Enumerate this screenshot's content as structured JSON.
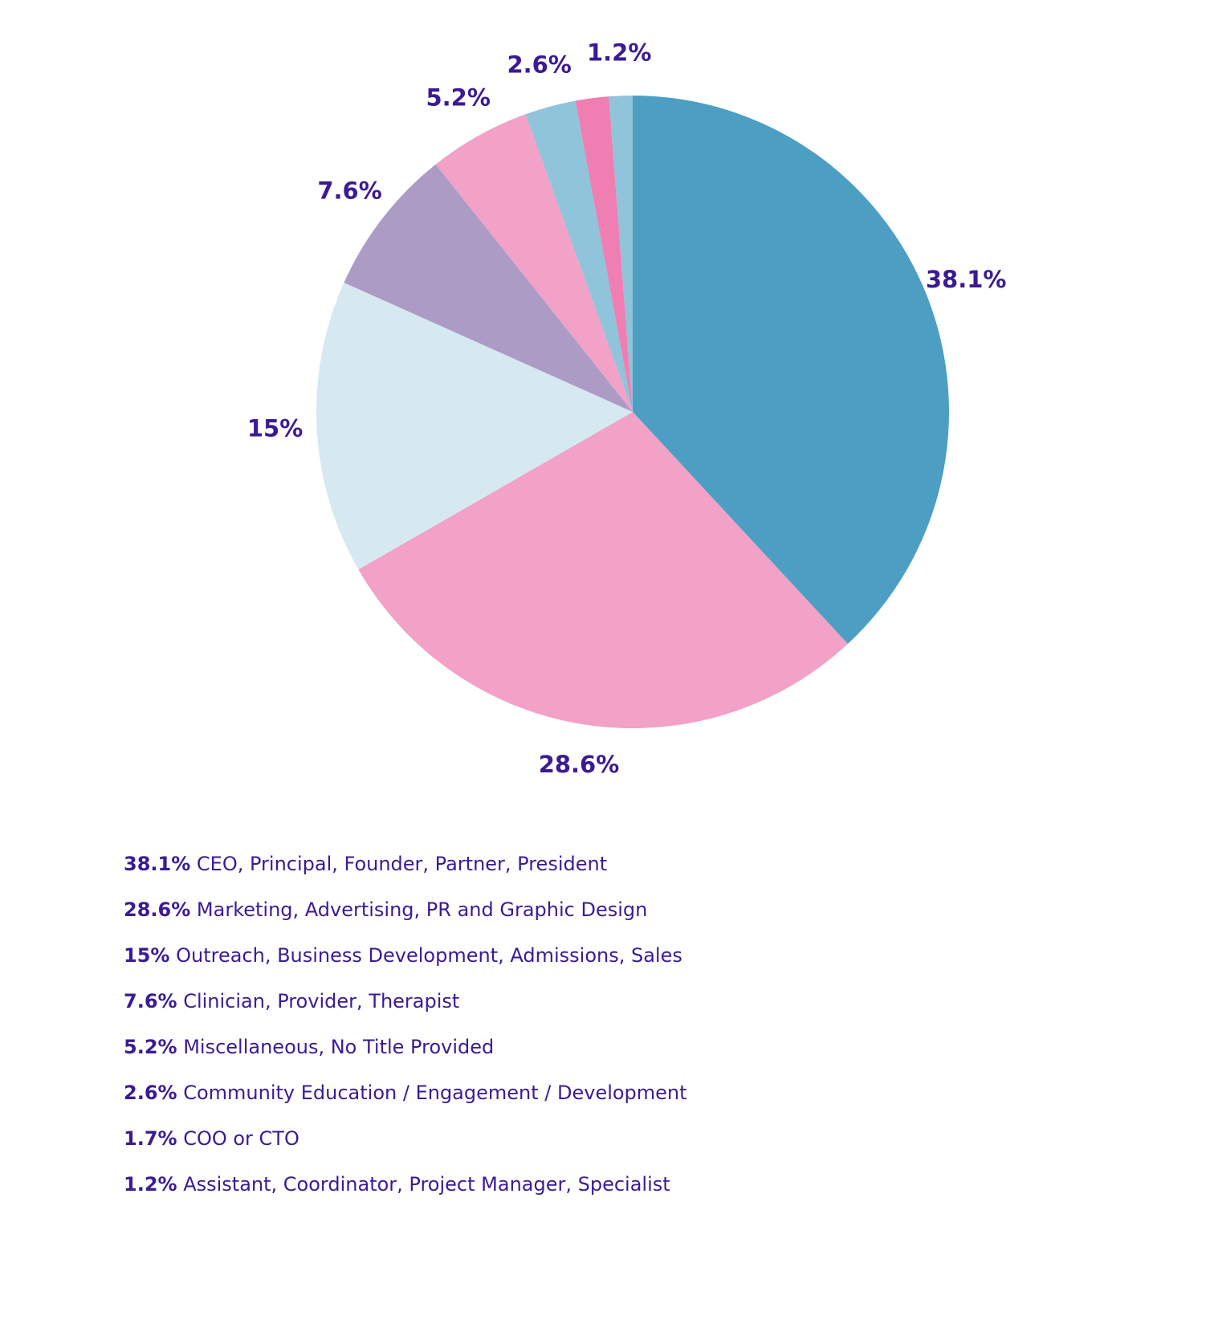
{
  "chart_data": {
    "type": "pie",
    "categories": [
      "CEO, Principal, Founder, Partner, President",
      "Marketing, Advertising, PR and Graphic Design",
      "Outreach, Business Development, Admissions, Sales",
      "Clinician, Provider, Therapist",
      "Miscellaneous, No Title Provided",
      "Community Education / Engagement / Development",
      "COO or CTO",
      "Assistant, Coordinator, Project Manager, Specialist"
    ],
    "values": [
      38.1,
      28.6,
      15,
      7.6,
      5.2,
      2.6,
      1.7,
      1.2
    ],
    "value_labels": [
      "38.1%",
      "28.6%",
      "15%",
      "7.6%",
      "5.2%",
      "2.6%",
      null,
      "1.2%"
    ],
    "legend_labels": [
      "38.1%",
      "28.6%",
      "15%",
      "7.6%",
      "5.2%",
      "2.6%",
      "1.7%",
      "1.2%"
    ],
    "colors": [
      "#4c9fc3",
      "#f2a1c7",
      "#d6e9f0",
      "#ac9bc5",
      "#f2a1c7",
      "#8fc4da",
      "#ef7fb3",
      "#8fc4da"
    ]
  }
}
